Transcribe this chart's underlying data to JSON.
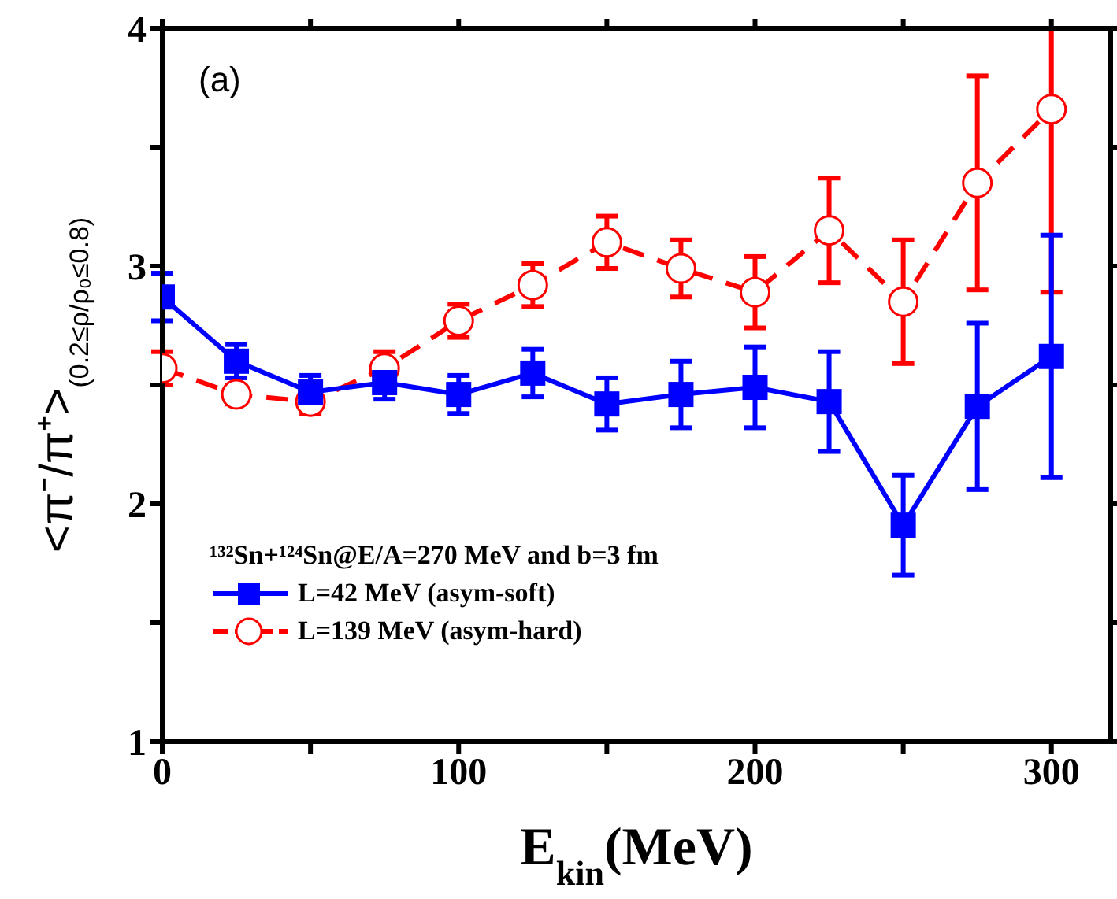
{
  "chart_data": {
    "type": "line",
    "annotations": [
      "(a)"
    ],
    "xlabel": "E$_{kin}$(MeV)",
    "ylabel": "<π⁻/π⁺>$_{(0.2≤ρ/ρ₀≤0.8)}$",
    "legend_title": "¹³²Sn+¹²⁴Sn@E/A=270 MeV and b=3 fm",
    "x": [
      0,
      25,
      50,
      75,
      100,
      125,
      150,
      175,
      200,
      225,
      250,
      275,
      300
    ],
    "series": [
      {
        "name": "L=42 MeV (asym-soft)",
        "color": "#0000ff",
        "marker": "square",
        "line_style": "solid",
        "values": [
          2.87,
          2.6,
          2.47,
          2.51,
          2.46,
          2.55,
          2.42,
          2.46,
          2.49,
          2.43,
          1.91,
          2.41,
          2.62
        ],
        "errors": [
          0.1,
          0.07,
          0.07,
          0.07,
          0.08,
          0.1,
          0.11,
          0.14,
          0.17,
          0.21,
          0.21,
          0.35,
          0.51
        ]
      },
      {
        "name": "L=139 MeV (asym-hard)",
        "color": "#ff0000",
        "marker": "circle",
        "line_style": "dashed",
        "values": [
          2.57,
          2.46,
          2.43,
          2.57,
          2.77,
          2.92,
          3.1,
          2.99,
          2.89,
          3.15,
          2.85,
          3.35,
          3.66
        ],
        "errors": [
          0.07,
          0.04,
          0.05,
          0.07,
          0.07,
          0.09,
          0.11,
          0.12,
          0.15,
          0.22,
          0.26,
          0.45,
          [
            2.89,
            4
          ]
        ]
      }
    ],
    "xlim": [
      0,
      320
    ],
    "xticks": [
      0,
      {
        "value": 50,
        "label": null
      },
      100,
      {
        "value": 150,
        "label": null
      },
      200,
      {
        "value": 250,
        "label": null
      },
      300
    ],
    "ylim": [
      1,
      4
    ],
    "yticks": [
      1,
      {
        "value": 1.5,
        "label": null
      },
      2,
      {
        "value": 2.5,
        "label": null
      },
      3,
      {
        "value": 3.5,
        "label": null
      },
      4
    ],
    "grid": false,
    "legend": "bottom left"
  }
}
